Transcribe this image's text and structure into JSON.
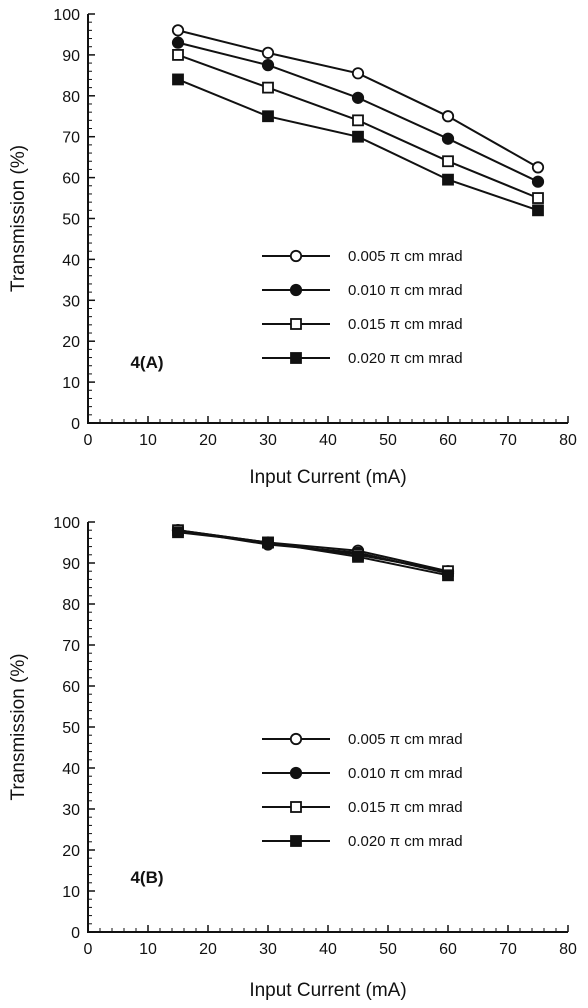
{
  "chart_data": [
    {
      "type": "line",
      "panel_label": "4(A)",
      "xlabel": "Input Current (mA)",
      "ylabel": "Transmission (%)",
      "xlim": [
        0,
        80
      ],
      "ylim": [
        0,
        100
      ],
      "x_ticks": [
        "0",
        "10",
        "20",
        "30",
        "40",
        "50",
        "60",
        "70",
        "80"
      ],
      "y_ticks": [
        "0",
        "10",
        "20",
        "30",
        "40",
        "50",
        "60",
        "70",
        "80",
        "90",
        "100"
      ],
      "legend_position": "lower-right",
      "series": [
        {
          "name": "0.005 π cm mrad",
          "marker": "open-circle",
          "x": [
            15,
            30,
            45,
            60,
            75
          ],
          "y": [
            96,
            90.5,
            85.5,
            75,
            62.5
          ]
        },
        {
          "name": "0.010 π cm mrad",
          "marker": "filled-circle",
          "x": [
            15,
            30,
            45,
            60,
            75
          ],
          "y": [
            93,
            87.5,
            79.5,
            69.5,
            59
          ]
        },
        {
          "name": "0.015 π cm mrad",
          "marker": "open-square",
          "x": [
            15,
            30,
            45,
            60,
            75
          ],
          "y": [
            90,
            82,
            74,
            64,
            55
          ]
        },
        {
          "name": "0.020 π cm mrad",
          "marker": "filled-square",
          "x": [
            15,
            30,
            45,
            60,
            75
          ],
          "y": [
            84,
            75,
            70,
            59.5,
            52
          ]
        }
      ]
    },
    {
      "type": "line",
      "panel_label": "4(B)",
      "xlabel": "Input Current (mA)",
      "ylabel": "Transmission (%)",
      "xlim": [
        0,
        80
      ],
      "ylim": [
        0,
        100
      ],
      "x_ticks": [
        "0",
        "10",
        "20",
        "30",
        "40",
        "50",
        "60",
        "70",
        "80"
      ],
      "y_ticks": [
        "0",
        "10",
        "20",
        "30",
        "40",
        "50",
        "60",
        "70",
        "80",
        "90",
        "100"
      ],
      "legend_position": "lower-right",
      "series": [
        {
          "name": "0.005 π cm mrad",
          "marker": "open-circle",
          "x": [
            15,
            30,
            45,
            60
          ],
          "y": [
            98,
            95,
            93,
            88
          ]
        },
        {
          "name": "0.010 π cm mrad",
          "marker": "filled-circle",
          "x": [
            15,
            30,
            45,
            60
          ],
          "y": [
            98,
            94.5,
            92.5,
            87.5
          ]
        },
        {
          "name": "0.015 π cm mrad",
          "marker": "open-square",
          "x": [
            15,
            30,
            45,
            60
          ],
          "y": [
            98,
            95,
            92,
            88
          ]
        },
        {
          "name": "0.020 π cm mrad",
          "marker": "filled-square",
          "x": [
            15,
            30,
            45,
            60
          ],
          "y": [
            97.5,
            95,
            91.5,
            87
          ]
        }
      ]
    }
  ]
}
